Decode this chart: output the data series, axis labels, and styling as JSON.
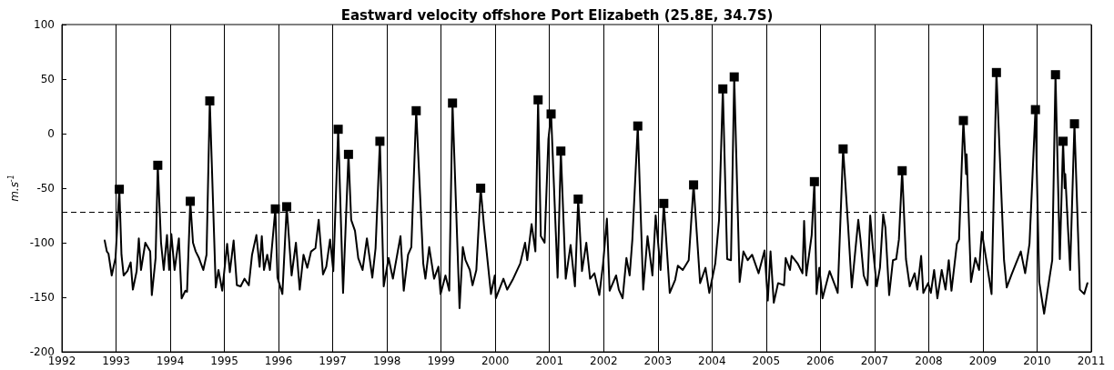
{
  "chart_data": {
    "type": "line",
    "title": "Eastward velocity offshore Port Elizabeth (25.8E, 34.7S)",
    "ylabel": "m.s$^{-1}$",
    "xlim": [
      1992,
      2011
    ],
    "xticks": [
      1992,
      1993,
      1994,
      1995,
      1996,
      1997,
      1998,
      1999,
      2000,
      2001,
      2002,
      2003,
      2004,
      2005,
      2006,
      2007,
      2008,
      2009,
      2010,
      2011
    ],
    "ylim": [
      -200,
      100
    ],
    "yticks": [
      -200,
      -150,
      -100,
      -50,
      0,
      50,
      100
    ],
    "grid": "x",
    "line_style": "solid",
    "ref_lines": [
      {
        "axis": "y",
        "value": -72,
        "label": null,
        "color": "#000000",
        "line_style": "dashed"
      }
    ],
    "series": [
      {
        "type": "line",
        "color": "#000000",
        "marker": "none",
        "x": [
          1992.79,
          1992.83,
          1992.86,
          1992.92,
          1992.99,
          1993.06,
          1993.1,
          1993.14,
          1993.21,
          1993.27,
          1993.31,
          1993.38,
          1993.42,
          1993.46,
          1993.54,
          1993.63,
          1993.66,
          1993.73,
          1993.77,
          1993.83,
          1993.88,
          1993.94,
          1993.98,
          1994.02,
          1994.08,
          1994.16,
          1994.21,
          1994.28,
          1994.31,
          1994.37,
          1994.42,
          1994.47,
          1994.53,
          1994.61,
          1994.67,
          1994.73,
          1994.84,
          1994.89,
          1994.96,
          1995.05,
          1995.1,
          1995.17,
          1995.23,
          1995.3,
          1995.37,
          1995.45,
          1995.51,
          1995.59,
          1995.65,
          1995.69,
          1995.73,
          1995.79,
          1995.84,
          1995.94,
          1995.98,
          1996.07,
          1996.15,
          1996.24,
          1996.32,
          1996.39,
          1996.46,
          1996.53,
          1996.6,
          1996.68,
          1996.74,
          1996.82,
          1996.88,
          1996.95,
          1997.01,
          1997.1,
          1997.19,
          1997.29,
          1997.34,
          1997.41,
          1997.47,
          1997.55,
          1997.63,
          1997.73,
          1997.79,
          1997.87,
          1997.94,
          1998.03,
          1998.11,
          1998.25,
          1998.31,
          1998.39,
          1998.45,
          1998.54,
          1998.67,
          1998.71,
          1998.78,
          1998.87,
          1998.95,
          1998.99,
          1999.08,
          1999.15,
          1999.21,
          1999.34,
          1999.4,
          1999.45,
          1999.53,
          1999.58,
          1999.65,
          1999.73,
          1999.79,
          1999.92,
          1999.99,
          2000.01,
          2000.15,
          2000.22,
          2000.32,
          2000.46,
          2000.55,
          2000.59,
          2000.67,
          2000.74,
          2000.79,
          2000.84,
          2000.91,
          2000.98,
          2001.03,
          2001.15,
          2001.21,
          2001.3,
          2001.39,
          2001.47,
          2001.53,
          2001.6,
          2001.68,
          2001.75,
          2001.83,
          2001.92,
          2001.99,
          2002.06,
          2002.11,
          2002.23,
          2002.28,
          2002.35,
          2002.42,
          2002.48,
          2002.53,
          2002.63,
          2002.73,
          2002.81,
          2002.9,
          2002.96,
          2003.05,
          2003.11,
          2003.22,
          2003.32,
          2003.37,
          2003.46,
          2003.57,
          2003.66,
          2003.78,
          2003.88,
          2003.95,
          2004.06,
          2004.13,
          2004.2,
          2004.28,
          2004.35,
          2004.41,
          2004.51,
          2004.58,
          2004.66,
          2004.74,
          2004.86,
          2004.97,
          2005.03,
          2005.08,
          2005.14,
          2005.22,
          2005.33,
          2005.36,
          2005.44,
          2005.47,
          2005.58,
          2005.67,
          2005.7,
          2005.74,
          2005.84,
          2005.89,
          2005.93,
          2005.98,
          2006.04,
          2006.17,
          2006.27,
          2006.32,
          2006.42,
          2006.51,
          2006.58,
          2006.7,
          2006.74,
          2006.8,
          2006.87,
          2006.92,
          2006.97,
          2007.04,
          2007.1,
          2007.16,
          2007.2,
          2007.27,
          2007.34,
          2007.4,
          2007.45,
          2007.51,
          2007.58,
          2007.65,
          2007.74,
          2007.79,
          2007.86,
          2007.9,
          2007.99,
          2008.04,
          2008.1,
          2008.16,
          2008.24,
          2008.31,
          2008.37,
          2008.42,
          2008.52,
          2008.56,
          2008.64,
          2008.69,
          2008.7,
          2008.78,
          2008.86,
          2008.93,
          2008.98,
          2009.06,
          2009.16,
          2009.25,
          2009.39,
          2009.44,
          2009.53,
          2009.61,
          2009.7,
          2009.78,
          2009.86,
          2009.97,
          2010.04,
          2010.13,
          2010.23,
          2010.28,
          2010.34,
          2010.42,
          2010.48,
          2010.51,
          2010.52,
          2010.61,
          2010.69,
          2010.79,
          2010.87,
          2010.93
        ],
        "values": [
          -98,
          -108,
          -110,
          -130,
          -114,
          -51,
          -111,
          -130,
          -126,
          -118,
          -143,
          -126,
          -96,
          -125,
          -100,
          -108,
          -148,
          -114,
          -29,
          -100,
          -125,
          -93,
          -125,
          -92,
          -125,
          -96,
          -151,
          -144,
          -145,
          -62,
          -100,
          -108,
          -114,
          -125,
          -111,
          30,
          -141,
          -125,
          -144,
          -101,
          -127,
          -98,
          -139,
          -140,
          -133,
          -139,
          -111,
          -93,
          -122,
          -94,
          -125,
          -111,
          -125,
          -69,
          -132,
          -147,
          -67,
          -130,
          -100,
          -143,
          -111,
          -123,
          -108,
          -105,
          -79,
          -129,
          -122,
          -97,
          -126,
          4,
          -146,
          -19,
          -79,
          -89,
          -114,
          -125,
          -96,
          -132,
          -105,
          -7,
          -140,
          -114,
          -133,
          -94,
          -144,
          -111,
          -104,
          21,
          -119,
          -133,
          -104,
          -133,
          -122,
          -147,
          -130,
          -144,
          28,
          -160,
          -104,
          -116,
          -125,
          -139,
          -125,
          -50,
          -84,
          -147,
          -130,
          -151,
          -133,
          -143,
          -134,
          -119,
          -100,
          -116,
          -83,
          -108,
          31,
          -94,
          -100,
          -5,
          18,
          -132,
          -16,
          -133,
          -102,
          -140,
          -60,
          -126,
          -100,
          -133,
          -128,
          -148,
          -119,
          -78,
          -144,
          -130,
          -143,
          -151,
          -114,
          -130,
          -97,
          7,
          -143,
          -94,
          -130,
          -75,
          -125,
          -64,
          -146,
          -134,
          -121,
          -125,
          -116,
          -47,
          -137,
          -123,
          -146,
          -119,
          -79,
          41,
          -115,
          -116,
          52,
          -136,
          -108,
          -116,
          -111,
          -128,
          -107,
          -153,
          -108,
          -155,
          -137,
          -139,
          -114,
          -125,
          -112,
          -119,
          -128,
          -80,
          -130,
          -93,
          -44,
          -147,
          -123,
          -151,
          -126,
          -139,
          -146,
          -14,
          -83,
          -141,
          -79,
          -97,
          -130,
          -139,
          -75,
          -105,
          -140,
          -123,
          -74,
          -86,
          -148,
          -116,
          -115,
          -97,
          -34,
          -115,
          -140,
          -128,
          -143,
          -112,
          -146,
          -137,
          -146,
          -125,
          -151,
          -125,
          -143,
          -116,
          -144,
          -101,
          -97,
          12,
          -37,
          -19,
          -136,
          -114,
          -125,
          -90,
          -115,
          -147,
          56,
          -116,
          -141,
          -129,
          -119,
          -108,
          -128,
          -101,
          22,
          -136,
          -165,
          -132,
          -116,
          54,
          -115,
          -7,
          -50,
          -37,
          -125,
          9,
          -143,
          -147,
          -137
        ]
      },
      {
        "type": "scatter",
        "color": "#000000",
        "marker": "square",
        "x": [
          1993.06,
          1993.77,
          1994.37,
          1994.73,
          1995.94,
          1996.15,
          1997.1,
          1997.29,
          1997.87,
          1998.54,
          1999.21,
          1999.73,
          2000.79,
          2001.03,
          2001.21,
          2001.53,
          2002.63,
          2003.11,
          2003.66,
          2004.2,
          2004.41,
          2005.89,
          2006.42,
          2007.51,
          2008.64,
          2009.25,
          2009.97,
          2010.34,
          2010.48,
          2010.69
        ],
        "values": [
          -51,
          -29,
          -62,
          30,
          -69,
          -67,
          4,
          -19,
          -7,
          21,
          28,
          -50,
          31,
          18,
          -16,
          -60,
          7,
          -64,
          -47,
          41,
          52,
          -44,
          -14,
          -34,
          12,
          56,
          22,
          54,
          -7,
          9
        ]
      }
    ]
  }
}
